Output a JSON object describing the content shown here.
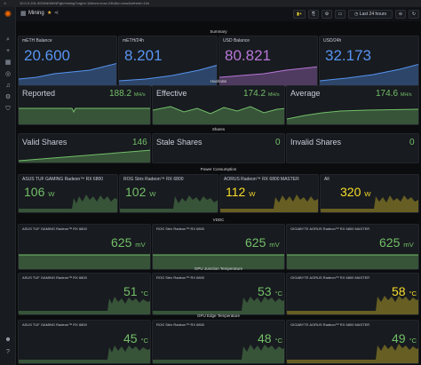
{
  "browser": {
    "url": "10.0.0.201:3000/d/WhNPgb/mining?orgId=1&from=now-24h&to=now&refresh=10s",
    "security": "Not secure"
  },
  "app": {
    "title": "Mining",
    "time_range": "Last 24 hours"
  },
  "colors": {
    "blue": "#5794f2",
    "purple": "#b877d9",
    "green": "#73bf69",
    "yellow": "#fade2a",
    "orange": "#ff9830"
  },
  "icons": [
    "grafana-logo-icon",
    "search-icon",
    "star-icon",
    "dashboards-icon",
    "explore-icon",
    "alerting-icon",
    "config-icon",
    "shield-icon",
    "user-avatar-icon",
    "help-icon"
  ],
  "rows": {
    "summary": "Summary",
    "hashrate": "Hashrate",
    "shares": "Shares",
    "power": "Power Consumption",
    "vddc": "VDDC",
    "junction": "GPU Junction Temperature",
    "edge": "GPU Edge Temperature"
  },
  "summary": [
    {
      "label": "mETH Balance",
      "value": "20.600",
      "unit": ""
    },
    {
      "label": "mETH/24h",
      "value": "8.201",
      "unit": ""
    },
    {
      "label": "USD Balance",
      "value": "80.821",
      "unit": ""
    },
    {
      "label": "USD/24h",
      "value": "32.173",
      "unit": ""
    }
  ],
  "hashrate": [
    {
      "label": "Reported",
      "value": "188.2",
      "unit": "MH/s"
    },
    {
      "label": "Effective",
      "value": "174.2",
      "unit": "MH/s"
    },
    {
      "label": "Average",
      "value": "174.6",
      "unit": "MH/s"
    }
  ],
  "shares": [
    {
      "label": "Valid Shares",
      "value": "146"
    },
    {
      "label": "Stale Shares",
      "value": "0"
    },
    {
      "label": "Invalid Shares",
      "value": "0"
    }
  ],
  "power": [
    {
      "label": "ASUS TUF GAMING Radeon™ RX 6800",
      "value": "106",
      "unit": "W"
    },
    {
      "label": "ROG Strix Radeon™ RX 6800",
      "value": "102",
      "unit": "W"
    },
    {
      "label": "AORUS Radeon™ RX 6800 MASTER",
      "value": "112",
      "unit": "W"
    },
    {
      "label": "All",
      "value": "320",
      "unit": "W"
    }
  ],
  "vddc": [
    {
      "label": "ASUS TUF GAMING Radeon™ RX 6800",
      "value": "625",
      "unit": "mV"
    },
    {
      "label": "ROG Strix Radeon™ RX 6800",
      "value": "625",
      "unit": "mV"
    },
    {
      "label": "GIGABYTE AORUS Radeon™ RX 6800 MASTER",
      "value": "625",
      "unit": "mV"
    }
  ],
  "junction": [
    {
      "label": "ASUS TUF GAMING Radeon™ RX 6800",
      "value": "51",
      "unit": "°C"
    },
    {
      "label": "ROG Strix Radeon™ RX 6800",
      "value": "53",
      "unit": "°C"
    },
    {
      "label": "GIGABYTE AORUS Radeon™ RX 6800 MASTER",
      "value": "58",
      "unit": "°C"
    }
  ],
  "edge": [
    {
      "label": "ASUS TUF GAMING Radeon™ RX 6800",
      "value": "45",
      "unit": "°C"
    },
    {
      "label": "ROG Strix Radeon™ RX 6800",
      "value": "48",
      "unit": "°C"
    },
    {
      "label": "GIGABYTE AORUS Radeon™ RX 6800 MASTER",
      "value": "49",
      "unit": "°C"
    }
  ]
}
